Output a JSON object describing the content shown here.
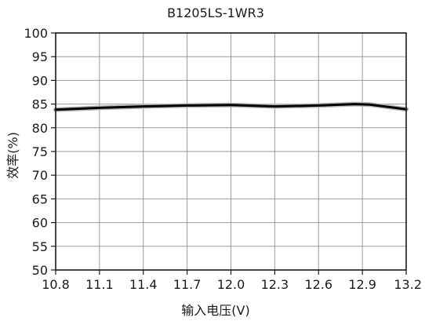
{
  "chart_data": {
    "type": "line",
    "title": "B1205LS-1WR3",
    "xlabel": "输入电压(V)",
    "ylabel": "效率(%)",
    "xlim": [
      10.8,
      13.2
    ],
    "ylim": [
      50,
      100
    ],
    "x_ticks": [
      "10.8",
      "11.1",
      "11.4",
      "11.7",
      "12.0",
      "12.3",
      "12.6",
      "12.9",
      "13.2"
    ],
    "y_ticks": [
      "100",
      "95",
      "90",
      "85",
      "80",
      "75",
      "70",
      "65",
      "60",
      "55",
      "50"
    ],
    "grid": true,
    "series": [
      {
        "x": [
          10.8,
          11.1,
          11.4,
          11.7,
          12.0,
          12.3,
          12.6,
          12.85,
          12.95,
          13.2
        ],
        "y": [
          83.8,
          84.2,
          84.5,
          84.7,
          84.8,
          84.5,
          84.7,
          85.0,
          84.9,
          83.9
        ]
      }
    ],
    "colors": {
      "line": "#000000",
      "grid": "#9a9a9a",
      "shadow": "#b8b8b8"
    }
  }
}
